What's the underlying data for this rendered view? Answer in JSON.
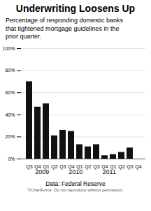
{
  "chart_data": {
    "type": "bar",
    "title": "Underwriting Loosens Up",
    "subtitle": "Percentage of responding domestic banks\nthat tightened mortgage guidelines in the\nprior quarter.",
    "source": "Data: Federal Reserve",
    "watermark": "©ChartForce  Do not reproduce without permission.",
    "annotations": [
      "2009",
      "2010",
      "2011"
    ],
    "categories": [
      "Q3",
      "Q4",
      "Q1",
      "Q2",
      "Q3",
      "Q4",
      "Q1",
      "Q2",
      "Q3",
      "Q4",
      "Q1",
      "Q2",
      "Q3",
      "Q4"
    ],
    "values": [
      70,
      47,
      50,
      21,
      26,
      25,
      13,
      11,
      13,
      3,
      4,
      6,
      10,
      null
    ],
    "color": "#111111",
    "ylim": [
      0,
      100
    ],
    "yticks": [
      {
        "value": 0,
        "label": "0%"
      },
      {
        "value": 20,
        "label": "20%"
      },
      {
        "value": 40,
        "label": "40%"
      },
      {
        "value": 60,
        "label": "60%"
      },
      {
        "value": 80,
        "label": "80%"
      },
      {
        "value": 100,
        "label": "100%"
      }
    ],
    "grid": true
  }
}
